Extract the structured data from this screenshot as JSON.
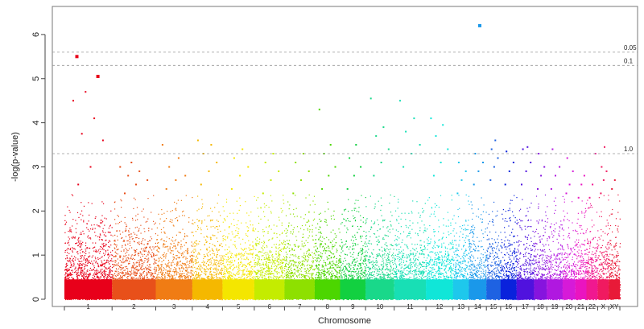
{
  "chart_data": {
    "type": "scatter",
    "title": "",
    "xlabel": "Chromosome",
    "ylabel": "-log(p-value)",
    "ylim": [
      0,
      6.6
    ],
    "yticks": [
      0,
      1,
      2,
      3,
      4,
      5,
      6
    ],
    "grid": false,
    "legend": "none",
    "thresholds": [
      {
        "label": "0.05",
        "y": 5.6
      },
      {
        "label": "0.1",
        "y": 5.3
      },
      {
        "label": "1.0",
        "y": 3.3
      }
    ],
    "chromosomes": [
      {
        "name": "1",
        "color": "#e8001a",
        "top": [
          2.6,
          3.0,
          3.6,
          3.75,
          4.1,
          4.5,
          4.7,
          5.05,
          5.5
        ]
      },
      {
        "name": "2",
        "color": "#e8501a",
        "top": [
          2.4,
          2.6,
          2.7,
          2.8,
          2.9,
          3.0,
          3.1
        ]
      },
      {
        "name": "3",
        "color": "#f07c14",
        "top": [
          2.5,
          2.7,
          2.8,
          3.0,
          3.2,
          3.5
        ]
      },
      {
        "name": "4",
        "color": "#f5b800",
        "top": [
          2.6,
          2.9,
          3.1,
          3.3,
          3.5,
          3.6
        ]
      },
      {
        "name": "5",
        "color": "#f4e600",
        "top": [
          2.5,
          2.8,
          3.0,
          3.2,
          3.4
        ]
      },
      {
        "name": "6",
        "color": "#c4ec00",
        "top": [
          2.4,
          2.7,
          2.9,
          3.1,
          3.3
        ]
      },
      {
        "name": "7",
        "color": "#8ee000",
        "top": [
          2.4,
          2.7,
          2.9,
          3.1,
          3.3
        ]
      },
      {
        "name": "8",
        "color": "#4cd600",
        "top": [
          2.5,
          2.8,
          3.0,
          3.3,
          3.5,
          4.3
        ]
      },
      {
        "name": "9",
        "color": "#12d040",
        "top": [
          2.5,
          2.8,
          3.0,
          3.2,
          3.5
        ]
      },
      {
        "name": "10",
        "color": "#19d88a",
        "top": [
          2.8,
          3.1,
          3.4,
          3.7,
          3.9,
          4.55
        ]
      },
      {
        "name": "11",
        "color": "#18dfb5",
        "top": [
          3.0,
          3.3,
          3.5,
          3.8,
          4.1,
          4.5
        ]
      },
      {
        "name": "12",
        "color": "#10e6d8",
        "top": [
          2.8,
          3.1,
          3.4,
          3.7,
          3.95,
          4.1
        ]
      },
      {
        "name": "13",
        "color": "#1ec8ec",
        "top": [
          2.4,
          2.7,
          2.9,
          3.1
        ]
      },
      {
        "name": "14",
        "color": "#1a98ea",
        "top": [
          2.6,
          2.9,
          3.1,
          3.3,
          6.2
        ]
      },
      {
        "name": "15",
        "color": "#1e62e2",
        "top": [
          2.7,
          3.0,
          3.2,
          3.4,
          3.6
        ]
      },
      {
        "name": "16",
        "color": "#0a22dc",
        "top": [
          2.6,
          2.9,
          3.1,
          3.35
        ]
      },
      {
        "name": "17",
        "color": "#5012de",
        "top": [
          2.6,
          2.9,
          3.1,
          3.4,
          3.45
        ]
      },
      {
        "name": "18",
        "color": "#8614de",
        "top": [
          2.5,
          2.8,
          3.0,
          3.3
        ]
      },
      {
        "name": "19",
        "color": "#b018e0",
        "top": [
          2.5,
          2.8,
          3.0,
          3.4
        ]
      },
      {
        "name": "20",
        "color": "#d61ad8",
        "top": [
          2.4,
          2.6,
          2.9,
          3.2
        ]
      },
      {
        "name": "21",
        "color": "#ea14c0",
        "top": [
          2.3,
          2.6,
          2.8
        ]
      },
      {
        "name": "22",
        "color": "#f01890",
        "top": [
          2.3,
          2.6,
          3.3
        ]
      },
      {
        "name": "X",
        "color": "#f01a60",
        "top": [
          2.4,
          2.7,
          2.9,
          3.0,
          3.45
        ]
      },
      {
        "name": "XY",
        "color": "#e81a38",
        "top": [
          2.5,
          2.7
        ]
      }
    ]
  }
}
